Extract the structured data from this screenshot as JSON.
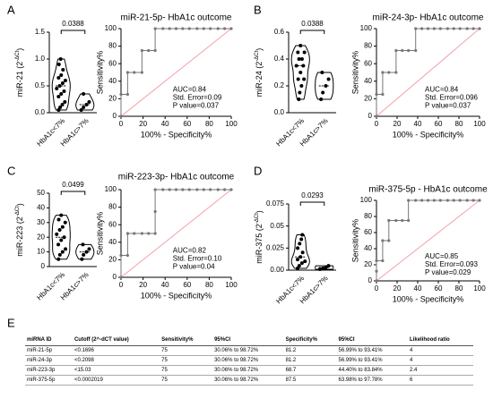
{
  "chart_data": [
    {
      "type": "violin",
      "panel": "A",
      "ylabel_parts": [
        "miR-21 (2",
        "-ΔCt",
        ")"
      ],
      "categories": [
        "HbA1c<7%",
        "HbA1c>7%"
      ],
      "series": [
        {
          "values": [
            0.05,
            0.1,
            0.15,
            0.2,
            0.3,
            0.35,
            0.4,
            0.45,
            0.5,
            0.55,
            0.6,
            0.65,
            0.7,
            0.8,
            0.9,
            1.0
          ]
        },
        {
          "values": [
            0.05,
            0.1,
            0.15,
            0.2,
            0.35
          ]
        }
      ],
      "ylim": [
        0,
        1.5
      ],
      "yticks": [
        {
          "value": 0,
          "label": "0.0"
        },
        0.5,
        {
          "value": 1,
          "label": "1.0"
        },
        1.5
      ],
      "significance": "0.0388",
      "color": "#000000"
    },
    {
      "type": "line",
      "title": "miR-21-5p- HbA1c outcome",
      "ylabel": "Sensitivity%",
      "xlabel": "100% - Specificity%",
      "x": [
        0,
        0,
        6,
        6,
        12,
        19,
        19,
        25,
        31,
        31,
        38,
        44,
        50,
        56,
        62,
        69,
        75,
        81,
        88,
        94,
        100
      ],
      "series": [
        {
          "color": "#777777",
          "values": [
            0,
            25,
            25,
            50,
            50,
            50,
            75,
            75,
            75,
            100,
            100,
            100,
            100,
            100,
            100,
            100,
            100,
            100,
            100,
            100,
            100
          ]
        }
      ],
      "xlim": [
        0,
        100
      ],
      "ylim": [
        0,
        100
      ],
      "xticks": [
        0,
        20,
        40,
        60,
        80,
        100
      ],
      "yticks": [
        0,
        20,
        40,
        60,
        80,
        100
      ],
      "reference_color": "#f2a0a8",
      "annotations": [
        "AUC=0.84",
        "Std. Error=0.09",
        "P value=0.037"
      ]
    },
    {
      "type": "violin",
      "panel": "B",
      "ylabel_parts": [
        "miR-24 (2",
        "-ΔCt",
        ")"
      ],
      "categories": [
        "HbA1c<7%",
        "HbA1c>7%"
      ],
      "series": [
        {
          "values": [
            0.1,
            0.15,
            0.2,
            0.25,
            0.25,
            0.3,
            0.35,
            0.35,
            0.4,
            0.4,
            0.45,
            0.45,
            0.5
          ]
        },
        {
          "values": [
            0.1,
            0.15,
            0.2,
            0.25,
            0.3
          ]
        }
      ],
      "ylim": [
        0,
        0.6
      ],
      "yticks": [
        {
          "value": 0,
          "label": "0.0"
        },
        0.2,
        0.4,
        0.6
      ],
      "significance": "0.0388",
      "color": "#000000"
    },
    {
      "type": "line",
      "title": "miR-24-3p- HbA1c outcome",
      "ylabel": "Sensitivity%",
      "xlabel": "100% - Specificity%",
      "x": [
        0,
        0,
        6,
        6,
        12,
        19,
        19,
        25,
        31,
        38,
        38,
        44,
        50,
        56,
        62,
        69,
        75,
        81,
        88,
        94,
        100
      ],
      "series": [
        {
          "color": "#777777",
          "values": [
            0,
            25,
            25,
            50,
            50,
            50,
            75,
            75,
            75,
            75,
            100,
            100,
            100,
            100,
            100,
            100,
            100,
            100,
            100,
            100,
            100
          ]
        }
      ],
      "xlim": [
        0,
        100
      ],
      "ylim": [
        0,
        100
      ],
      "xticks": [
        0,
        20,
        40,
        60,
        80,
        100
      ],
      "yticks": [
        0,
        20,
        40,
        60,
        80,
        100
      ],
      "reference_color": "#f2a0a8",
      "annotations": [
        "AUC=0.84",
        "Std. Error=0.096",
        "P value=0.037"
      ]
    },
    {
      "type": "violin",
      "panel": "C",
      "ylabel_parts": [
        "miR-223 (2",
        "-ΔCt",
        ")"
      ],
      "categories": [
        "HbA1c<7%",
        "HbA1c>7%"
      ],
      "series": [
        {
          "values": [
            5,
            8,
            10,
            12,
            15,
            18,
            20,
            22,
            25,
            27,
            30,
            32,
            35
          ]
        },
        {
          "values": [
            5,
            8,
            10,
            12,
            15
          ]
        }
      ],
      "ylim": [
        0,
        50
      ],
      "yticks": [
        0,
        10,
        20,
        30,
        40,
        50
      ],
      "significance": "0.0499",
      "color": "#000000"
    },
    {
      "type": "line",
      "title": "miR-223-3p- HbA1c outcome",
      "ylabel": "Sensitivity%",
      "xlabel": "100% - Specificity%",
      "x": [
        0,
        0,
        6,
        6,
        12,
        19,
        25,
        31,
        31,
        31,
        38,
        44,
        50,
        56,
        62,
        69,
        75,
        81,
        88,
        94,
        100
      ],
      "series": [
        {
          "color": "#777777",
          "values": [
            0,
            25,
            25,
            50,
            50,
            50,
            50,
            50,
            75,
            100,
            100,
            100,
            100,
            100,
            100,
            100,
            100,
            100,
            100,
            100,
            100
          ]
        }
      ],
      "xlim": [
        0,
        100
      ],
      "ylim": [
        0,
        100
      ],
      "xticks": [
        0,
        20,
        40,
        60,
        80,
        100
      ],
      "yticks": [
        0,
        20,
        40,
        60,
        80,
        100
      ],
      "reference_color": "#f2a0a8",
      "annotations": [
        "AUC=0.82",
        "Std. Error=0.10",
        "P value=0.04"
      ]
    },
    {
      "type": "violin",
      "panel": "D",
      "ylabel_parts": [
        "miR-375 (2",
        "-ΔCt",
        ")"
      ],
      "categories": [
        "HbA1c<7%",
        "HbA1c>7%"
      ],
      "series": [
        {
          "values": [
            0.002,
            0.005,
            0.008,
            0.01,
            0.012,
            0.015,
            0.02,
            0.025,
            0.03,
            0.035,
            0.04
          ]
        },
        {
          "values": [
            0.001,
            0.002,
            0.003,
            0.005
          ]
        }
      ],
      "ylim": [
        0,
        0.075
      ],
      "yticks": [
        {
          "value": 0,
          "label": "0.00"
        },
        0.025,
        0.05,
        0.075
      ],
      "significance": "0.0293",
      "color": "#000000"
    },
    {
      "type": "line",
      "title": "miR-375-5p - HbA1c outcome",
      "ylabel": "Sensitivity%",
      "xlabel": "100% - Specificity%",
      "x": [
        0,
        0,
        0,
        6,
        6,
        12,
        12,
        19,
        25,
        31,
        31,
        38,
        44,
        50,
        56,
        62,
        69,
        75,
        81,
        88,
        94,
        100
      ],
      "series": [
        {
          "color": "#777777",
          "values": [
            0,
            12,
            25,
            25,
            50,
            50,
            75,
            75,
            75,
            75,
            100,
            100,
            100,
            100,
            100,
            100,
            100,
            100,
            100,
            100,
            100,
            100
          ]
        }
      ],
      "xlim": [
        0,
        100
      ],
      "ylim": [
        0,
        100
      ],
      "xticks": [
        0,
        20,
        40,
        60,
        80,
        100
      ],
      "yticks": [
        0,
        20,
        40,
        60,
        80,
        100
      ],
      "reference_color": "#f2a0a8",
      "annotations": [
        "AUC=0.85",
        "Std. Error=0.093",
        "P value=0.029"
      ]
    }
  ],
  "table": {
    "panel": "E",
    "header": [
      "miRNA ID",
      "Cutoff (2^-dCT value)",
      "Sensitivity%",
      "95%CI",
      "Specificity%",
      "95%CI",
      "Likelihood ratio"
    ],
    "rows": [
      [
        "miR-21-5p",
        "<0.1696",
        "75",
        "30.06% to 98.72%",
        "81.2",
        "56.99% to 93.41%",
        "4"
      ],
      [
        "miR-24-3p",
        "<0.2098",
        "75",
        "30.06% to 98.72%",
        "81.2",
        "56.99% to 93.41%",
        "4"
      ],
      [
        "miR-223-3p",
        "<15.03",
        "75",
        "30.06% to 98.72%",
        "68.7",
        "44.40% to 83.84%",
        "2.4"
      ],
      [
        "miR-375-5p",
        "<0.0002019",
        "75",
        "30.06% to 98.72%",
        "87.5",
        "63.98% to 97.78%",
        "6"
      ]
    ]
  }
}
